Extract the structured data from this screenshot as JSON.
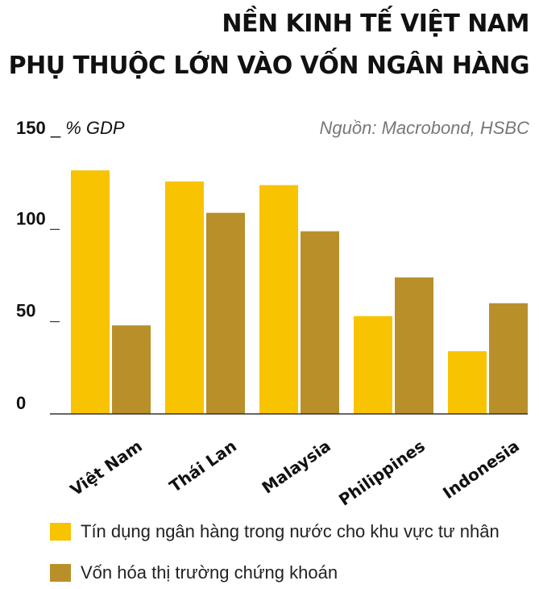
{
  "header": {
    "title_line1": "NỀN KINH TẾ VIỆT NAM",
    "title_line2": "PHỤ THUỘC LỚN VÀO VỐN NGÂN HÀNG",
    "unit_top_tick": "150",
    "unit_sep": "_",
    "unit_label": "% GDP",
    "source": "Nguồn: Macrobond, HSBC"
  },
  "chart_data": {
    "type": "bar",
    "categories": [
      "Việt Nam",
      "Thái Lan",
      "Malaysia",
      "Philippines",
      "Indonesia"
    ],
    "series": [
      {
        "name": "Tín dụng ngân hàng trong nước cho khu vực tư nhân",
        "values": [
          132,
          126,
          124,
          53,
          34
        ],
        "color": "#f8c300"
      },
      {
        "name": "Vốn hóa thị trường chứng khoán",
        "values": [
          48,
          109,
          99,
          74,
          60
        ],
        "color": "#b98f2a"
      }
    ],
    "yticks": [
      0,
      50,
      100,
      150
    ],
    "ytick_labels": [
      "0",
      "50",
      "100"
    ],
    "ylim": [
      0,
      150
    ],
    "xlabel": "",
    "ylabel": "% GDP",
    "grid": false,
    "legend_position": "bottom"
  }
}
